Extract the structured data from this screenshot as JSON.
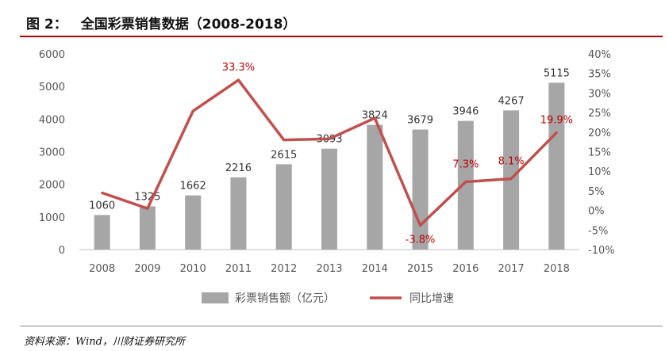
{
  "title": {
    "label": "图 2：",
    "text": "全国彩票销售数据（2008-2018）"
  },
  "source": "资料来源：Wind，川财证券研究所",
  "colors": {
    "bar": "#a6a6a6",
    "line": "#c0504d",
    "line_label": "#c00000",
    "bar_label": "#333333",
    "axis_text": "#555555",
    "title_rule": "#b40000"
  },
  "chart_data": {
    "type": "bar",
    "categories": [
      "2008",
      "2009",
      "2010",
      "2011",
      "2012",
      "2013",
      "2014",
      "2015",
      "2016",
      "2017",
      "2018"
    ],
    "series": [
      {
        "name": "彩票销售额（亿元）",
        "type": "bar",
        "axis": "left",
        "values": [
          1060,
          1325,
          1662,
          2216,
          2615,
          3093,
          3824,
          3679,
          3946,
          4267,
          5115
        ],
        "labels": [
          "1060",
          "1325",
          "1662",
          "2216",
          "2615",
          "3093",
          "3824",
          "3679",
          "3946",
          "4267",
          "5115"
        ]
      },
      {
        "name": "同比增速",
        "type": "line",
        "axis": "right",
        "values": [
          4.5,
          0.5,
          25.4,
          33.3,
          18.0,
          18.3,
          23.6,
          -3.8,
          7.3,
          8.1,
          19.9
        ],
        "labels": [
          "",
          "",
          "",
          "33.3%",
          "",
          "",
          "",
          "-3.8%",
          "7.3%",
          "8.1%",
          "19.9%"
        ]
      }
    ],
    "ylim_left": [
      0,
      6000
    ],
    "yticks_left": [
      "0",
      "1000",
      "2000",
      "3000",
      "4000",
      "5000",
      "6000"
    ],
    "ylim_right": [
      -10,
      40
    ],
    "yticks_right": [
      "-10%",
      "-5%",
      "0%",
      "5%",
      "10%",
      "15%",
      "20%",
      "25%",
      "30%",
      "35%",
      "40%"
    ],
    "grid": false,
    "legend": "bottom"
  }
}
